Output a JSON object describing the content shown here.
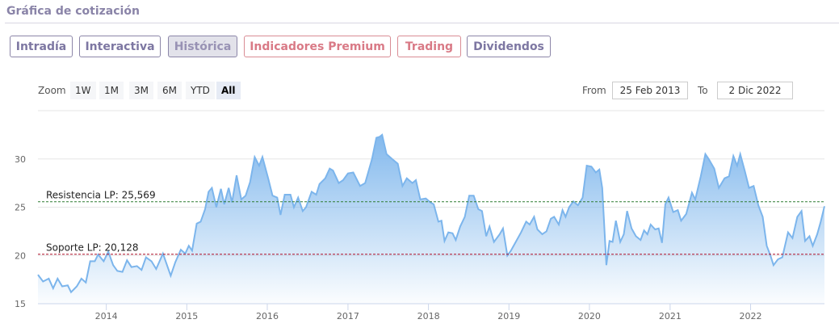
{
  "header": {
    "title": "Gráfica de cotización"
  },
  "tabs": [
    {
      "label": "Intradía",
      "active": false
    },
    {
      "label": "Interactiva",
      "active": false
    },
    {
      "label": "Histórica",
      "active": true
    },
    {
      "label": "Indicadores Premium",
      "active": false
    },
    {
      "label": "Trading",
      "active": false
    },
    {
      "label": "Dividendos",
      "active": false
    }
  ],
  "range_selector": {
    "zoom_label": "Zoom",
    "buttons": [
      "1W",
      "1M",
      "3M",
      "6M",
      "YTD",
      "All"
    ],
    "selected": "All",
    "from_label": "From",
    "from_value": "25 Feb 2013",
    "to_label": "To",
    "to_value": "2 Dic 2022"
  },
  "colors": {
    "line": "#7cb5ec",
    "fill_top": "#7cb5ec",
    "resistance": "#2e7d32",
    "support": "#b0102a",
    "tab_text": "#7d77a2",
    "tab_premium": "#d97a86"
  },
  "chart_data": {
    "type": "area",
    "xlabel": "",
    "ylabel": "",
    "ylim": [
      15,
      33
    ],
    "yticks": [
      15,
      20,
      25,
      30
    ],
    "xticks": [
      "2014",
      "2015",
      "2016",
      "2017",
      "2018",
      "2019",
      "2020",
      "2021",
      "2022"
    ],
    "grid": true,
    "lines": [
      {
        "label": "Resistencia LP: 25,569",
        "value": 25.569,
        "color": "#2e7d32"
      },
      {
        "label": "Soporte LP: 20,128",
        "value": 20.128,
        "color": "#b0102a"
      }
    ],
    "series": [
      {
        "points": [
          [
            "2013-02-25",
            18.0
          ],
          [
            "2013-03-20",
            17.3
          ],
          [
            "2013-04-15",
            17.6
          ],
          [
            "2013-05-05",
            16.6
          ],
          [
            "2013-05-25",
            17.6
          ],
          [
            "2013-06-15",
            16.8
          ],
          [
            "2013-07-10",
            16.9
          ],
          [
            "2013-07-25",
            16.2
          ],
          [
            "2013-08-20",
            16.8
          ],
          [
            "2013-09-10",
            17.6
          ],
          [
            "2013-09-30",
            17.2
          ],
          [
            "2013-10-20",
            19.4
          ],
          [
            "2013-11-10",
            19.4
          ],
          [
            "2013-11-25",
            20.1
          ],
          [
            "2013-12-20",
            19.4
          ],
          [
            "2014-01-10",
            20.4
          ],
          [
            "2014-02-01",
            19.0
          ],
          [
            "2014-02-20",
            18.4
          ],
          [
            "2014-03-15",
            18.3
          ],
          [
            "2014-04-05",
            19.5
          ],
          [
            "2014-04-25",
            18.8
          ],
          [
            "2014-05-20",
            18.9
          ],
          [
            "2014-06-10",
            18.5
          ],
          [
            "2014-06-30",
            19.8
          ],
          [
            "2014-07-25",
            19.4
          ],
          [
            "2014-08-15",
            18.6
          ],
          [
            "2014-09-15",
            20.2
          ],
          [
            "2014-10-20",
            17.9
          ],
          [
            "2014-11-10",
            19.3
          ],
          [
            "2014-12-05",
            20.6
          ],
          [
            "2014-12-25",
            20.2
          ],
          [
            "2015-01-10",
            21.0
          ],
          [
            "2015-01-25",
            20.5
          ],
          [
            "2015-02-15",
            23.3
          ],
          [
            "2015-03-05",
            23.5
          ],
          [
            "2015-03-25",
            24.8
          ],
          [
            "2015-04-10",
            26.6
          ],
          [
            "2015-04-25",
            27.0
          ],
          [
            "2015-05-15",
            25.0
          ],
          [
            "2015-06-05",
            26.9
          ],
          [
            "2015-06-20",
            25.3
          ],
          [
            "2015-07-10",
            27.0
          ],
          [
            "2015-07-25",
            25.5
          ],
          [
            "2015-08-15",
            28.3
          ],
          [
            "2015-09-05",
            25.8
          ],
          [
            "2015-09-25",
            26.2
          ],
          [
            "2015-10-15",
            27.6
          ],
          [
            "2015-11-05",
            30.2
          ],
          [
            "2015-11-25",
            29.3
          ],
          [
            "2015-12-10",
            30.2
          ],
          [
            "2016-01-05",
            28.0
          ],
          [
            "2016-01-25",
            26.2
          ],
          [
            "2016-02-15",
            26.0
          ],
          [
            "2016-03-01",
            24.2
          ],
          [
            "2016-03-20",
            26.3
          ],
          [
            "2016-04-15",
            26.3
          ],
          [
            "2016-05-01",
            25.0
          ],
          [
            "2016-05-20",
            26.0
          ],
          [
            "2016-06-10",
            24.6
          ],
          [
            "2016-06-25",
            25.0
          ],
          [
            "2016-07-20",
            26.6
          ],
          [
            "2016-08-10",
            26.3
          ],
          [
            "2016-08-25",
            27.4
          ],
          [
            "2016-09-20",
            28.0
          ],
          [
            "2016-10-10",
            29.0
          ],
          [
            "2016-10-25",
            28.8
          ],
          [
            "2016-11-20",
            27.5
          ],
          [
            "2016-12-10",
            27.8
          ],
          [
            "2017-01-01",
            28.5
          ],
          [
            "2017-01-25",
            28.6
          ],
          [
            "2017-02-25",
            27.2
          ],
          [
            "2017-03-20",
            27.5
          ],
          [
            "2017-04-20",
            30.0
          ],
          [
            "2017-05-10",
            32.2
          ],
          [
            "2017-05-25",
            32.3
          ],
          [
            "2017-06-05",
            32.5
          ],
          [
            "2017-06-25",
            30.5
          ],
          [
            "2017-07-20",
            30.0
          ],
          [
            "2017-08-15",
            29.5
          ],
          [
            "2017-09-05",
            27.2
          ],
          [
            "2017-09-25",
            28.0
          ],
          [
            "2017-10-20",
            27.5
          ],
          [
            "2017-11-05",
            27.8
          ],
          [
            "2017-11-25",
            25.8
          ],
          [
            "2017-12-20",
            25.9
          ],
          [
            "2018-01-10",
            25.5
          ],
          [
            "2018-01-25",
            25.3
          ],
          [
            "2018-02-15",
            23.5
          ],
          [
            "2018-03-01",
            23.6
          ],
          [
            "2018-03-15",
            21.5
          ],
          [
            "2018-04-01",
            22.4
          ],
          [
            "2018-04-20",
            22.3
          ],
          [
            "2018-05-05",
            21.6
          ],
          [
            "2018-05-25",
            23.0
          ],
          [
            "2018-06-15",
            24.0
          ],
          [
            "2018-07-05",
            26.2
          ],
          [
            "2018-07-25",
            26.2
          ],
          [
            "2018-08-15",
            24.8
          ],
          [
            "2018-09-01",
            24.6
          ],
          [
            "2018-09-20",
            22.0
          ],
          [
            "2018-10-05",
            23.0
          ],
          [
            "2018-10-25",
            21.4
          ],
          [
            "2018-11-20",
            22.2
          ],
          [
            "2018-12-05",
            22.8
          ],
          [
            "2018-12-25",
            20.0
          ],
          [
            "2019-01-10",
            20.5
          ],
          [
            "2019-02-01",
            21.4
          ],
          [
            "2019-02-25",
            22.4
          ],
          [
            "2019-03-20",
            23.5
          ],
          [
            "2019-04-05",
            23.2
          ],
          [
            "2019-04-25",
            24.0
          ],
          [
            "2019-05-10",
            22.7
          ],
          [
            "2019-06-01",
            22.2
          ],
          [
            "2019-06-20",
            22.5
          ],
          [
            "2019-07-10",
            23.8
          ],
          [
            "2019-07-25",
            24.0
          ],
          [
            "2019-08-15",
            23.2
          ],
          [
            "2019-09-01",
            24.7
          ],
          [
            "2019-09-15",
            24.0
          ],
          [
            "2019-10-01",
            25.0
          ],
          [
            "2019-10-20",
            25.6
          ],
          [
            "2019-11-10",
            25.2
          ],
          [
            "2019-12-01",
            26.0
          ],
          [
            "2019-12-20",
            29.3
          ],
          [
            "2020-01-10",
            29.2
          ],
          [
            "2020-01-30",
            28.6
          ],
          [
            "2020-02-15",
            28.9
          ],
          [
            "2020-02-28",
            27.0
          ],
          [
            "2020-03-18",
            19.0
          ],
          [
            "2020-04-01",
            21.5
          ],
          [
            "2020-04-15",
            21.4
          ],
          [
            "2020-04-30",
            23.6
          ],
          [
            "2020-05-20",
            21.4
          ],
          [
            "2020-06-05",
            22.2
          ],
          [
            "2020-06-20",
            24.6
          ],
          [
            "2020-07-10",
            22.8
          ],
          [
            "2020-07-30",
            22.0
          ],
          [
            "2020-08-20",
            21.6
          ],
          [
            "2020-09-05",
            22.6
          ],
          [
            "2020-09-20",
            22.2
          ],
          [
            "2020-10-05",
            23.2
          ],
          [
            "2020-10-25",
            22.7
          ],
          [
            "2020-11-10",
            22.8
          ],
          [
            "2020-11-25",
            21.3
          ],
          [
            "2020-12-10",
            25.3
          ],
          [
            "2020-12-25",
            26.0
          ],
          [
            "2021-01-15",
            24.5
          ],
          [
            "2021-02-05",
            24.7
          ],
          [
            "2021-02-20",
            23.6
          ],
          [
            "2021-03-15",
            24.3
          ],
          [
            "2021-04-10",
            26.5
          ],
          [
            "2021-04-25",
            25.8
          ],
          [
            "2021-05-20",
            28.2
          ],
          [
            "2021-06-10",
            30.5
          ],
          [
            "2021-06-25",
            30.0
          ],
          [
            "2021-07-20",
            29.0
          ],
          [
            "2021-08-10",
            27.0
          ],
          [
            "2021-09-05",
            28.0
          ],
          [
            "2021-09-25",
            28.2
          ],
          [
            "2021-10-15",
            30.3
          ],
          [
            "2021-11-01",
            29.3
          ],
          [
            "2021-11-15",
            30.5
          ],
          [
            "2021-12-05",
            28.8
          ],
          [
            "2021-12-25",
            27.0
          ],
          [
            "2022-01-15",
            27.2
          ],
          [
            "2022-02-05",
            25.2
          ],
          [
            "2022-02-25",
            24.0
          ],
          [
            "2022-03-15",
            21.0
          ],
          [
            "2022-04-01",
            20.0
          ],
          [
            "2022-04-15",
            19.0
          ],
          [
            "2022-05-05",
            19.6
          ],
          [
            "2022-05-25",
            19.8
          ],
          [
            "2022-06-20",
            22.4
          ],
          [
            "2022-07-10",
            21.8
          ],
          [
            "2022-08-01",
            24.0
          ],
          [
            "2022-08-20",
            24.6
          ],
          [
            "2022-09-05",
            21.5
          ],
          [
            "2022-09-25",
            22.0
          ],
          [
            "2022-10-10",
            21.0
          ],
          [
            "2022-10-30",
            22.2
          ],
          [
            "2022-11-15",
            23.5
          ],
          [
            "2022-12-02",
            25.1
          ]
        ]
      }
    ]
  }
}
